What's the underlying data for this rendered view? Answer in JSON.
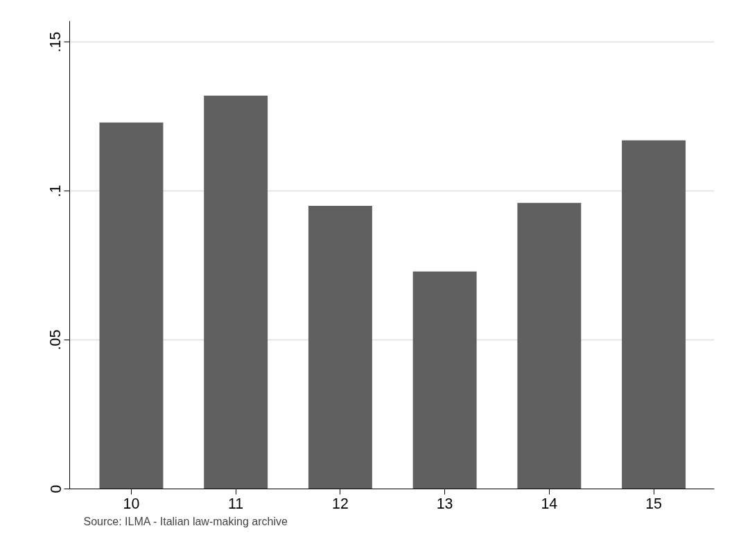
{
  "chart_data": {
    "type": "bar",
    "categories": [
      "10",
      "11",
      "12",
      "13",
      "14",
      "15"
    ],
    "values": [
      0.123,
      0.132,
      0.095,
      0.073,
      0.096,
      0.117
    ],
    "color": "#606060",
    "ylim": [
      0,
      0.157
    ],
    "yticks": [
      0,
      {
        "value": 0.05,
        "label": ".05"
      },
      {
        "value": 0.1,
        "label": ".1"
      },
      {
        "value": 0.15,
        "label": ".15"
      }
    ],
    "grid": "y",
    "annotations": [
      "Source: ILMA - Italian law-making archive"
    ]
  }
}
